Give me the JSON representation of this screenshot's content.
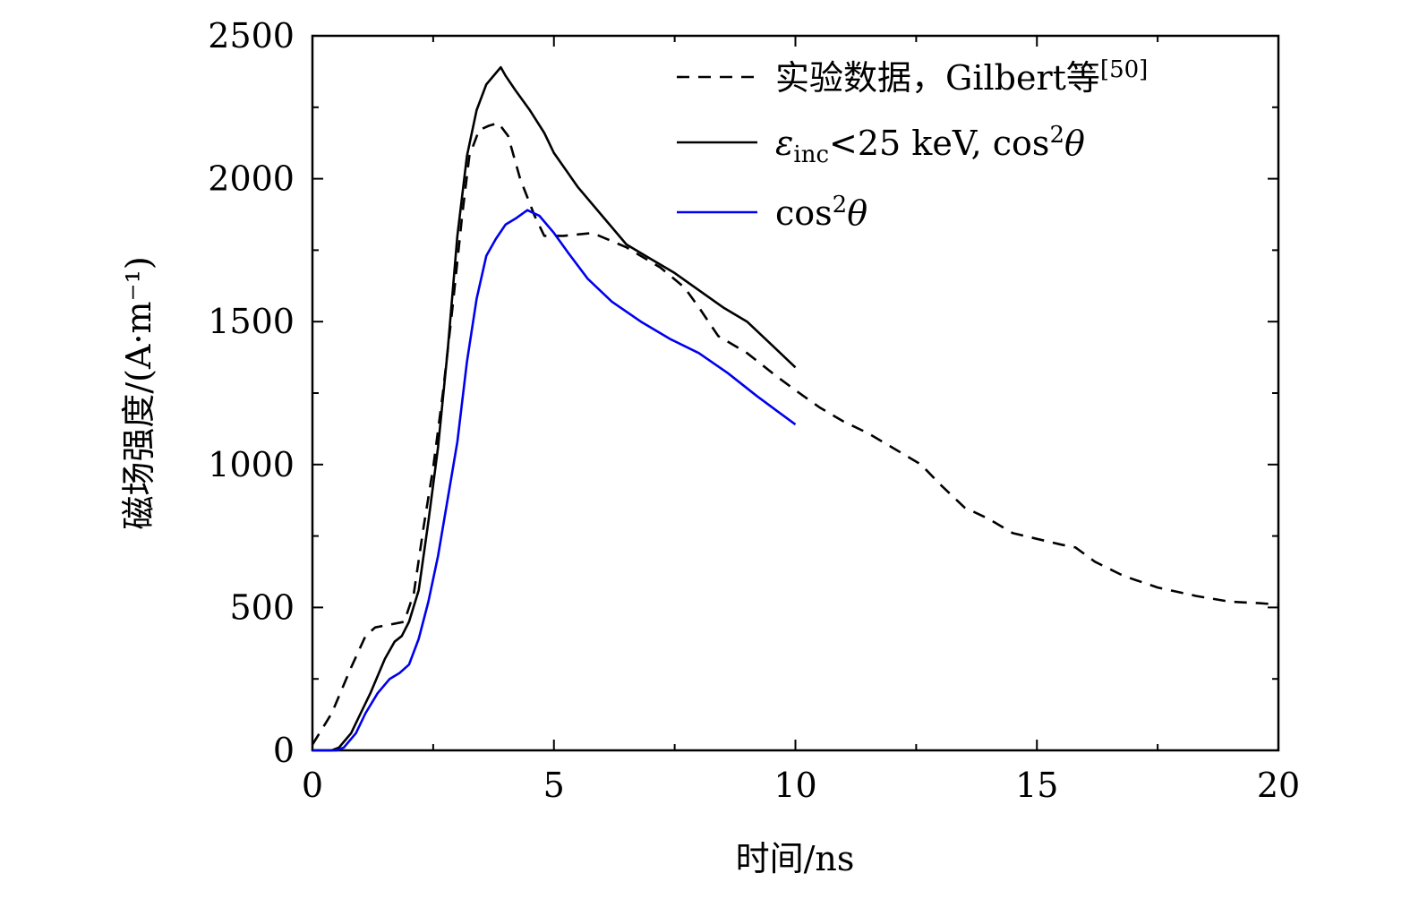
{
  "chart_data": {
    "type": "line",
    "xlabel": "时间/ns",
    "ylabel": "磁场强度/(A·m⁻¹)",
    "xlim": [
      0,
      20
    ],
    "ylim": [
      0,
      2500
    ],
    "xticks": [
      0,
      5,
      10,
      15,
      20
    ],
    "xtick_labels": [
      "0",
      "5",
      "10",
      "15",
      "20"
    ],
    "yticks": [
      0,
      500,
      1000,
      1500,
      2000,
      2500
    ],
    "ytick_labels": [
      "0",
      "500",
      "1000",
      "1500",
      "2000",
      "2500"
    ],
    "grid": false,
    "legend_position": "top-right",
    "series": [
      {
        "name": "实验数据，Gilbert等[50]",
        "legend_main": "实验数据，Gilbert等",
        "legend_ref": "[50]",
        "color": "#000000",
        "style": "dashed",
        "x": [
          0,
          0.4,
          0.8,
          1.1,
          1.3,
          1.6,
          1.9,
          2.1,
          2.3,
          2.5,
          2.7,
          2.9,
          3.1,
          3.25,
          3.45,
          3.65,
          3.85,
          4.05,
          4.3,
          4.6,
          4.8,
          5.2,
          5.8,
          6.5,
          7.2,
          7.7,
          8.0,
          8.4,
          9.0,
          9.6,
          10.0,
          10.5,
          11.0,
          11.5,
          12.0,
          12.6,
          13.0,
          13.5,
          14.0,
          14.5,
          15.0,
          15.5,
          15.8,
          16.2,
          16.8,
          17.5,
          18.3,
          19.0,
          19.6,
          20.0
        ],
        "y": [
          20,
          130,
          290,
          400,
          430,
          440,
          450,
          550,
          780,
          990,
          1250,
          1550,
          1870,
          2080,
          2170,
          2185,
          2195,
          2150,
          2000,
          1870,
          1800,
          1800,
          1810,
          1760,
          1690,
          1620,
          1550,
          1450,
          1390,
          1310,
          1260,
          1200,
          1150,
          1110,
          1060,
          1000,
          930,
          850,
          810,
          760,
          740,
          720,
          710,
          660,
          610,
          570,
          540,
          520,
          515,
          510
        ]
      },
      {
        "name": "εinc<25 keV, cos2θ",
        "legend_parts": [
          "ε",
          "inc",
          "<25 keV, cos",
          "2",
          "θ"
        ],
        "color": "#000000",
        "style": "solid",
        "x": [
          0,
          0.4,
          0.55,
          0.8,
          1.0,
          1.2,
          1.5,
          1.7,
          1.85,
          2.0,
          2.2,
          2.4,
          2.6,
          2.8,
          3.0,
          3.2,
          3.4,
          3.6,
          3.8,
          3.9,
          4.0,
          4.2,
          4.5,
          4.8,
          5.0,
          5.5,
          6.0,
          6.5,
          7.0,
          7.5,
          8.0,
          8.5,
          9.0,
          9.5,
          10.0
        ],
        "y": [
          0,
          0,
          10,
          60,
          130,
          200,
          320,
          380,
          400,
          450,
          560,
          800,
          1060,
          1400,
          1800,
          2080,
          2240,
          2330,
          2370,
          2390,
          2360,
          2310,
          2240,
          2160,
          2090,
          1970,
          1870,
          1770,
          1720,
          1670,
          1610,
          1550,
          1500,
          1420,
          1340
        ]
      },
      {
        "name": "cos2θ",
        "legend_parts": [
          "cos",
          "2",
          "θ"
        ],
        "color": "#0000ee",
        "style": "solid",
        "x": [
          0,
          0.5,
          0.65,
          0.9,
          1.1,
          1.35,
          1.6,
          1.8,
          2.0,
          2.2,
          2.4,
          2.6,
          2.8,
          3.0,
          3.2,
          3.4,
          3.6,
          3.8,
          4.0,
          4.2,
          4.45,
          4.7,
          5.0,
          5.3,
          5.7,
          6.2,
          6.8,
          7.4,
          8.0,
          8.6,
          9.2,
          9.6,
          10.0
        ],
        "y": [
          0,
          0,
          10,
          60,
          130,
          200,
          250,
          270,
          300,
          390,
          520,
          680,
          880,
          1080,
          1360,
          1580,
          1730,
          1790,
          1840,
          1860,
          1890,
          1870,
          1810,
          1740,
          1650,
          1570,
          1500,
          1440,
          1390,
          1320,
          1240,
          1190,
          1140
        ]
      }
    ]
  }
}
